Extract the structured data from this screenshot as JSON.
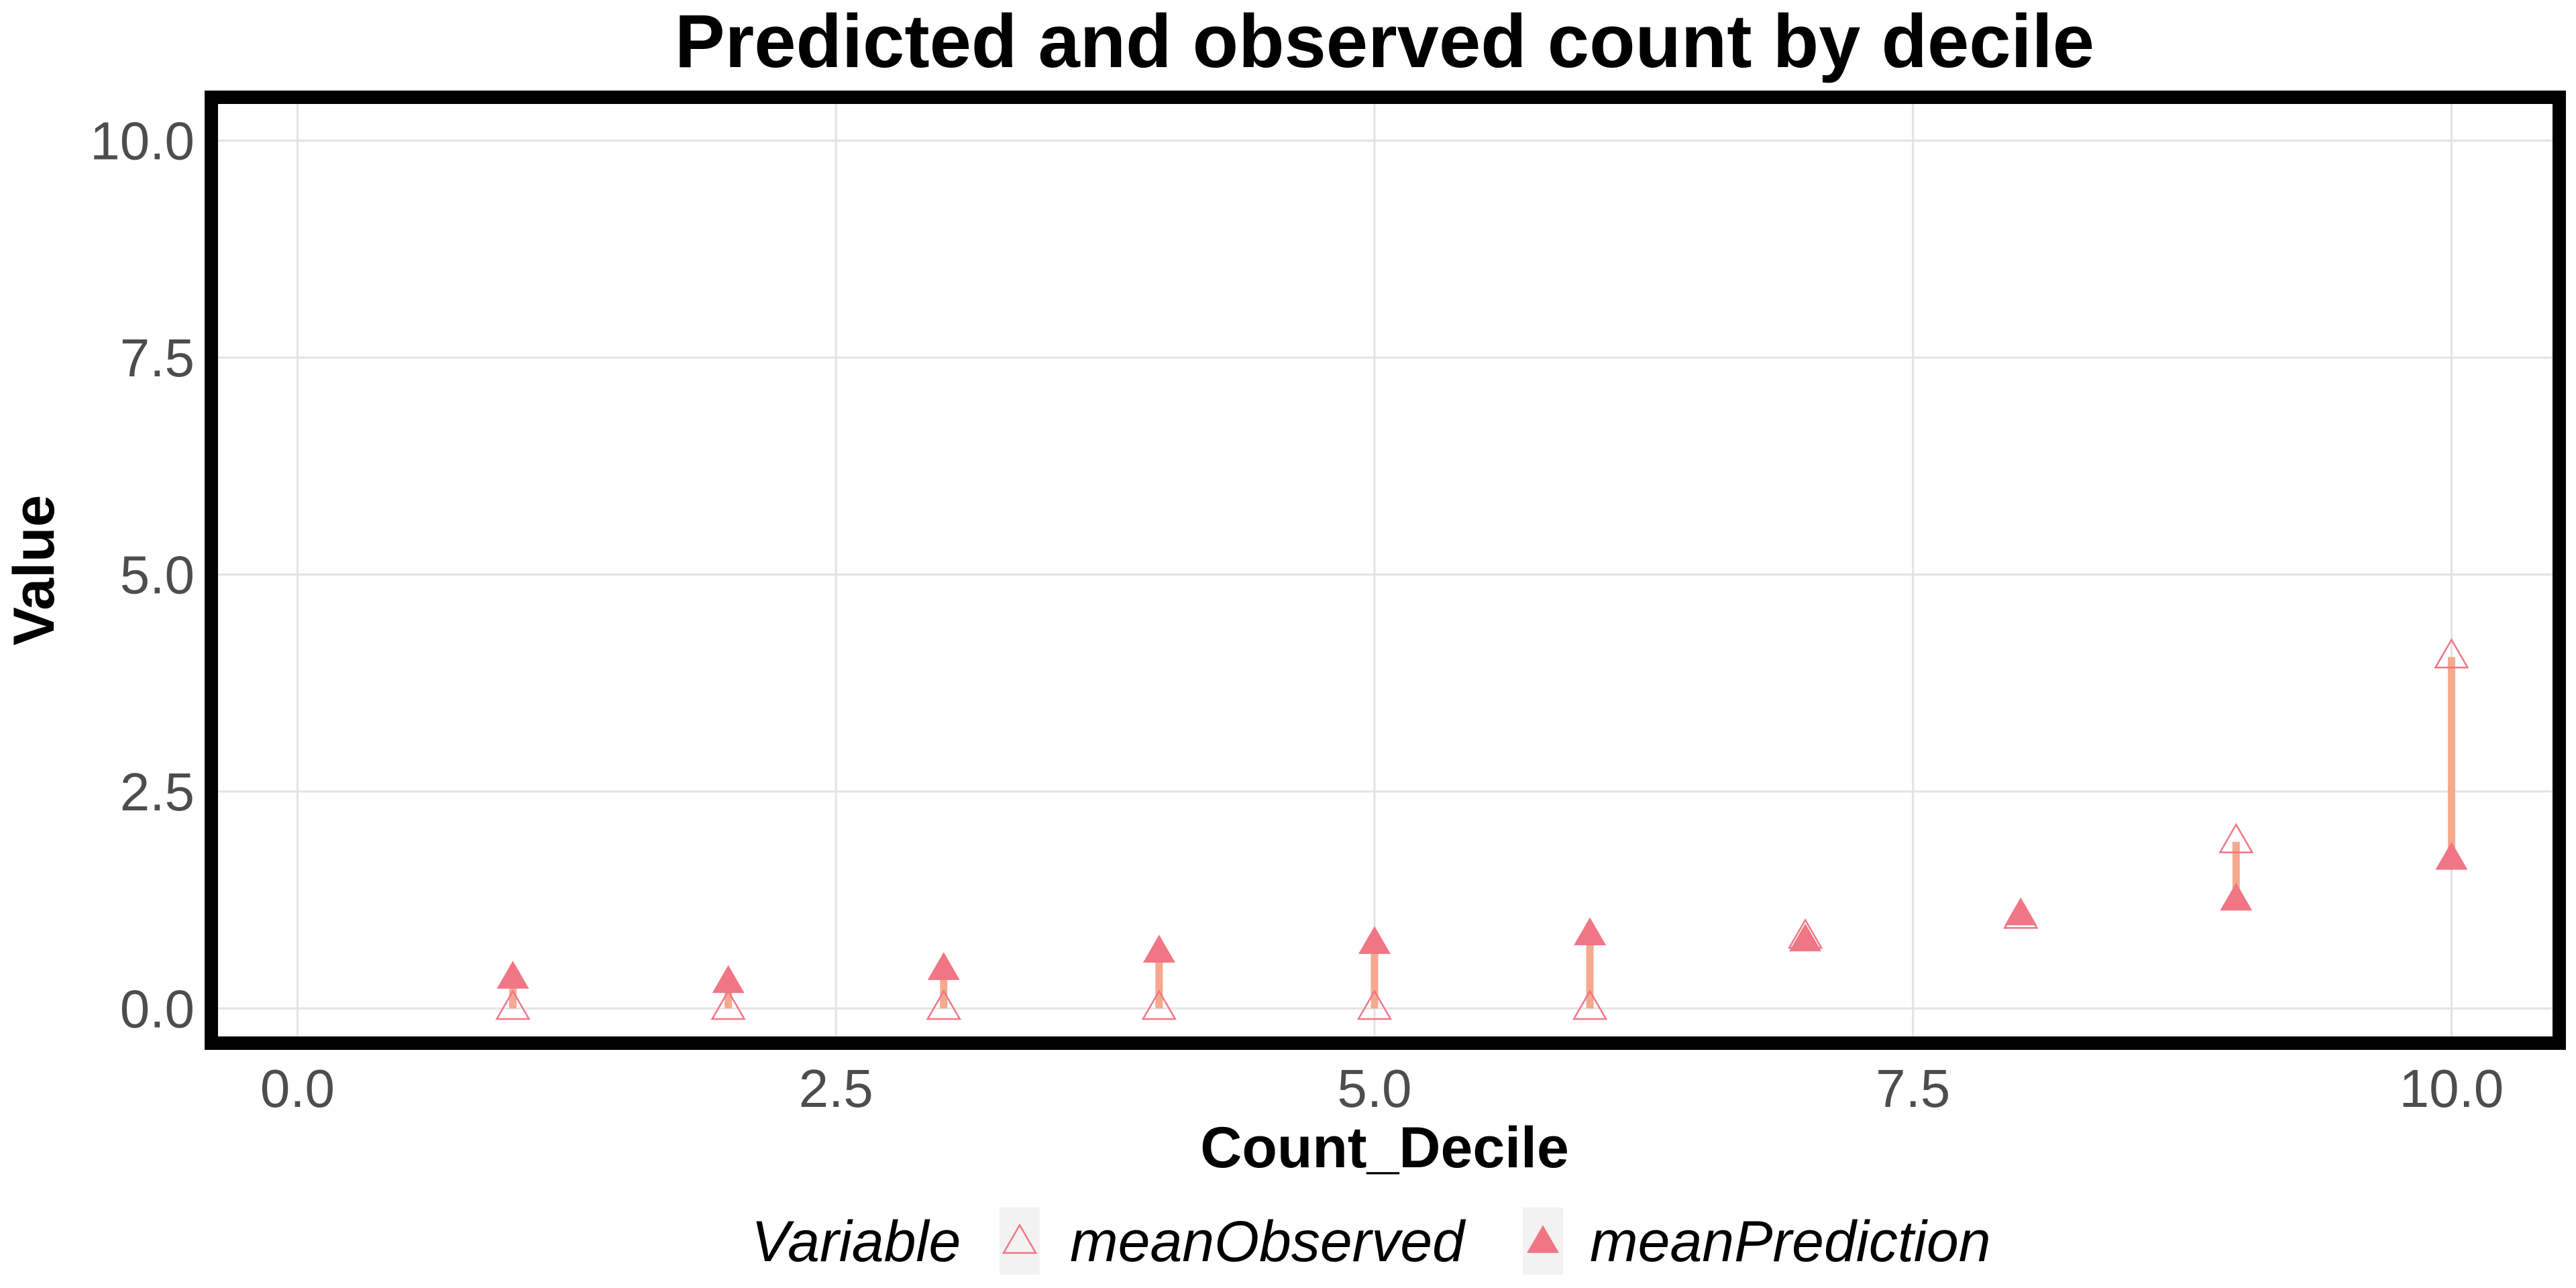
{
  "chart_data": {
    "type": "scatter",
    "title": "Predicted and observed count by decile",
    "xlabel": "Count_Decile",
    "ylabel": "Value",
    "xlim": [
      -0.4,
      10.5
    ],
    "ylim": [
      -0.4,
      10.5
    ],
    "x_ticks": [
      0.0,
      2.5,
      5.0,
      7.5,
      10.0
    ],
    "y_ticks": [
      0.0,
      2.5,
      5.0,
      7.5,
      10.0
    ],
    "x_tick_labels": [
      "0.0",
      "2.5",
      "5.0",
      "7.5",
      "10.0"
    ],
    "y_tick_labels": [
      "0.0",
      "2.5",
      "5.0",
      "7.5",
      "10.0"
    ],
    "grid": true,
    "legend": {
      "title": "Variable",
      "position": "bottom",
      "entries": [
        "meanObserved",
        "meanPrediction"
      ]
    },
    "x": [
      1,
      2,
      3,
      4,
      5,
      6,
      7,
      8,
      9,
      10
    ],
    "series": [
      {
        "name": "meanObserved",
        "marker": "open-triangle",
        "color": "#f07685",
        "values": [
          0.0,
          0.0,
          0.0,
          0.0,
          0.0,
          0.0,
          0.82,
          1.05,
          1.92,
          4.05
        ]
      },
      {
        "name": "meanPrediction",
        "marker": "filled-triangle",
        "color": "#f07685",
        "values": [
          0.35,
          0.3,
          0.45,
          0.65,
          0.75,
          0.85,
          0.78,
          1.08,
          1.25,
          1.72
        ]
      }
    ],
    "segment_color": "#f5a98e"
  }
}
